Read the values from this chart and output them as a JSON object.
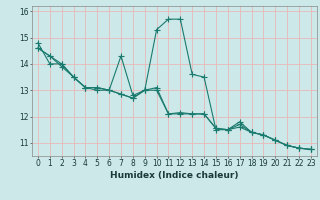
{
  "xlabel": "Humidex (Indice chaleur)",
  "bg_color": "#cce8e8",
  "grid_color": "#e8b8b8",
  "line_color": "#1a7a6e",
  "marker_color": "#1a7a6e",
  "xlim": [
    -0.5,
    23.5
  ],
  "ylim": [
    10.5,
    16.2
  ],
  "yticks": [
    11,
    12,
    13,
    14,
    15,
    16
  ],
  "xticks": [
    0,
    1,
    2,
    3,
    4,
    5,
    6,
    7,
    8,
    9,
    10,
    11,
    12,
    13,
    14,
    15,
    16,
    17,
    18,
    19,
    20,
    21,
    22,
    23
  ],
  "series1_x": [
    0,
    1,
    2,
    3,
    4,
    5,
    6,
    7,
    8,
    9,
    10,
    11,
    12,
    13,
    14,
    15,
    16,
    17,
    18,
    19,
    20,
    21,
    22,
    23
  ],
  "series1_y": [
    14.6,
    14.3,
    13.9,
    13.5,
    13.1,
    13.1,
    13.0,
    12.85,
    12.7,
    13.0,
    15.3,
    15.7,
    15.7,
    13.6,
    13.5,
    11.5,
    11.5,
    11.8,
    11.4,
    11.3,
    11.1,
    10.9,
    10.8,
    10.75
  ],
  "series2_x": [
    0,
    1,
    2,
    3,
    4,
    5,
    6,
    7,
    8,
    9,
    10,
    11,
    12,
    13,
    14,
    15,
    16,
    17,
    18,
    19,
    20,
    21,
    22,
    23
  ],
  "series2_y": [
    14.8,
    14.0,
    14.0,
    13.5,
    13.1,
    13.1,
    13.0,
    14.3,
    12.8,
    13.0,
    13.1,
    12.1,
    12.15,
    12.1,
    12.1,
    11.55,
    11.5,
    11.7,
    11.4,
    11.3,
    11.1,
    10.9,
    10.8,
    10.75
  ],
  "series3_x": [
    0,
    1,
    2,
    3,
    4,
    5,
    6,
    7,
    8,
    9,
    10,
    11,
    12,
    13,
    14,
    15,
    16,
    17,
    18,
    19,
    20,
    21,
    22,
    23
  ],
  "series3_y": [
    14.6,
    14.3,
    14.0,
    13.5,
    13.1,
    13.0,
    13.0,
    12.85,
    12.7,
    13.0,
    13.0,
    12.1,
    12.1,
    12.1,
    12.1,
    11.55,
    11.5,
    11.6,
    11.4,
    11.3,
    11.1,
    10.9,
    10.8,
    10.75
  ]
}
